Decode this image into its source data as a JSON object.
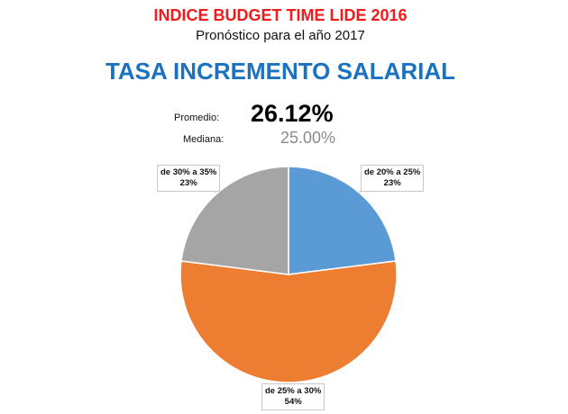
{
  "header": {
    "title": "INDICE BUDGET TIME LIDE 2016",
    "subtitle": "Pronóstico para el año 2017",
    "main_title": "TASA INCREMENTO SALARIAL"
  },
  "stats": {
    "average_label": "Promedio:",
    "average_value": "26.12%",
    "median_label": "Mediana:",
    "median_value": "25.00%"
  },
  "chart_data": {
    "type": "pie",
    "title": "TASA INCREMENTO SALARIAL",
    "start": "12 o'clock, clockwise",
    "slices": [
      {
        "label": "de 20% a 25%",
        "value": 23,
        "value_label": "23%",
        "color": "#5b9bd5"
      },
      {
        "label": "de 25% a 30%",
        "value": 54,
        "value_label": "54%",
        "color": "#ed7d31"
      },
      {
        "label": "de 30% a 35%",
        "value": 23,
        "value_label": "23%",
        "color": "#a5a5a5"
      }
    ]
  }
}
